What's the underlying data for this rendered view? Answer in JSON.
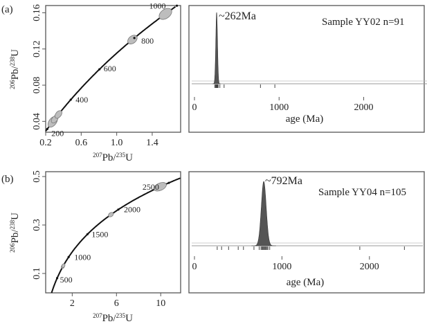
{
  "chart_data": [
    {
      "panel": "(a)",
      "type": "concordia",
      "xlabel_sup": "207",
      "xlabel_main": "Pb/",
      "xlabel_sup2": "235",
      "xlabel_end": "U",
      "ylabel_sup": "206",
      "ylabel_main": "Pb/",
      "ylabel_sup2": "238",
      "ylabel_end": "U",
      "xlim": [
        0.2,
        1.72
      ],
      "ylim": [
        0.028,
        0.168
      ],
      "xticks": [
        0.2,
        0.6,
        1.0,
        1.4
      ],
      "xtick_labels": [
        "0.2",
        "0.6",
        "1.0",
        "1.4"
      ],
      "yticks": [
        0.04,
        0.08,
        0.12,
        0.16
      ],
      "ytick_labels": [
        "0.04",
        "0.08",
        "0.12",
        "0.16"
      ],
      "age_ticks": [
        200,
        400,
        600,
        800,
        1000
      ],
      "age_labels": [
        "200",
        "400",
        "600",
        "800",
        "1000"
      ],
      "ellipses": [
        {
          "age": 250,
          "rx": 0.07,
          "ry": 0.004
        },
        {
          "age": 268,
          "rx": 0.05,
          "ry": 0.003
        },
        {
          "age": 300,
          "rx": 0.05,
          "ry": 0.003
        },
        {
          "age": 790,
          "rx": 0.06,
          "ry": 0.004
        },
        {
          "age": 950,
          "rx": 0.08,
          "ry": 0.005
        }
      ]
    },
    {
      "panel": "(a)",
      "type": "area",
      "annotation": "~262Ma",
      "sample_label": "Sample YY02  n=91",
      "xlabel": "age (Ma)",
      "xlim": [
        0,
        2650
      ],
      "xticks": [
        0,
        1000,
        2000
      ],
      "xtick_labels": [
        "0",
        "1000",
        "2000"
      ],
      "peak": {
        "age": 262,
        "sigma": 10
      },
      "rug_ages": [
        240,
        250,
        255,
        258,
        260,
        262,
        264,
        266,
        268,
        270,
        275,
        280,
        300,
        350,
        780,
        950
      ]
    },
    {
      "panel": "(b)",
      "type": "concordia",
      "xlabel_sup": "207",
      "xlabel_main": "Pb/",
      "xlabel_sup2": "235",
      "xlabel_end": "U",
      "ylabel_sup": "206",
      "ylabel_main": "Pb/",
      "ylabel_sup2": "238",
      "ylabel_end": "U",
      "xlim": [
        -0.4,
        11.8
      ],
      "ylim": [
        0.02,
        0.52
      ],
      "xticks": [
        2,
        6,
        10
      ],
      "xtick_labels": [
        "2",
        "6",
        "10"
      ],
      "yticks": [
        0.1,
        0.3,
        0.5
      ],
      "ytick_labels": [
        "0.1",
        "0.3",
        "0.5"
      ],
      "age_ticks": [
        500,
        1000,
        1500,
        2000,
        2500
      ],
      "age_labels": [
        "500",
        "1000",
        "1500",
        "2000",
        "2500"
      ],
      "ellipses": [
        {
          "age": 780,
          "rx": 0.18,
          "ry": 0.006
        },
        {
          "age": 800,
          "rx": 0.18,
          "ry": 0.006
        },
        {
          "age": 1900,
          "rx": 0.25,
          "ry": 0.008
        },
        {
          "age": 2430,
          "rx": 0.6,
          "ry": 0.015
        }
      ]
    },
    {
      "panel": "(b)",
      "type": "area",
      "annotation": "~792Ma",
      "sample_label": "Sample YY04 n=105",
      "xlabel": "age (Ma)",
      "xlim": [
        0,
        2500
      ],
      "xticks": [
        0,
        1000,
        2000
      ],
      "xtick_labels": [
        "0",
        "1000",
        "2000"
      ],
      "peak": {
        "age": 792,
        "sigma": 28
      },
      "rug_ages": [
        260,
        310,
        390,
        500,
        560,
        680,
        740,
        760,
        770,
        780,
        790,
        795,
        800,
        810,
        820,
        830,
        840,
        860,
        1890,
        2400
      ]
    }
  ],
  "labels": {
    "panel_a": "(a)",
    "panel_b": "(b)"
  }
}
